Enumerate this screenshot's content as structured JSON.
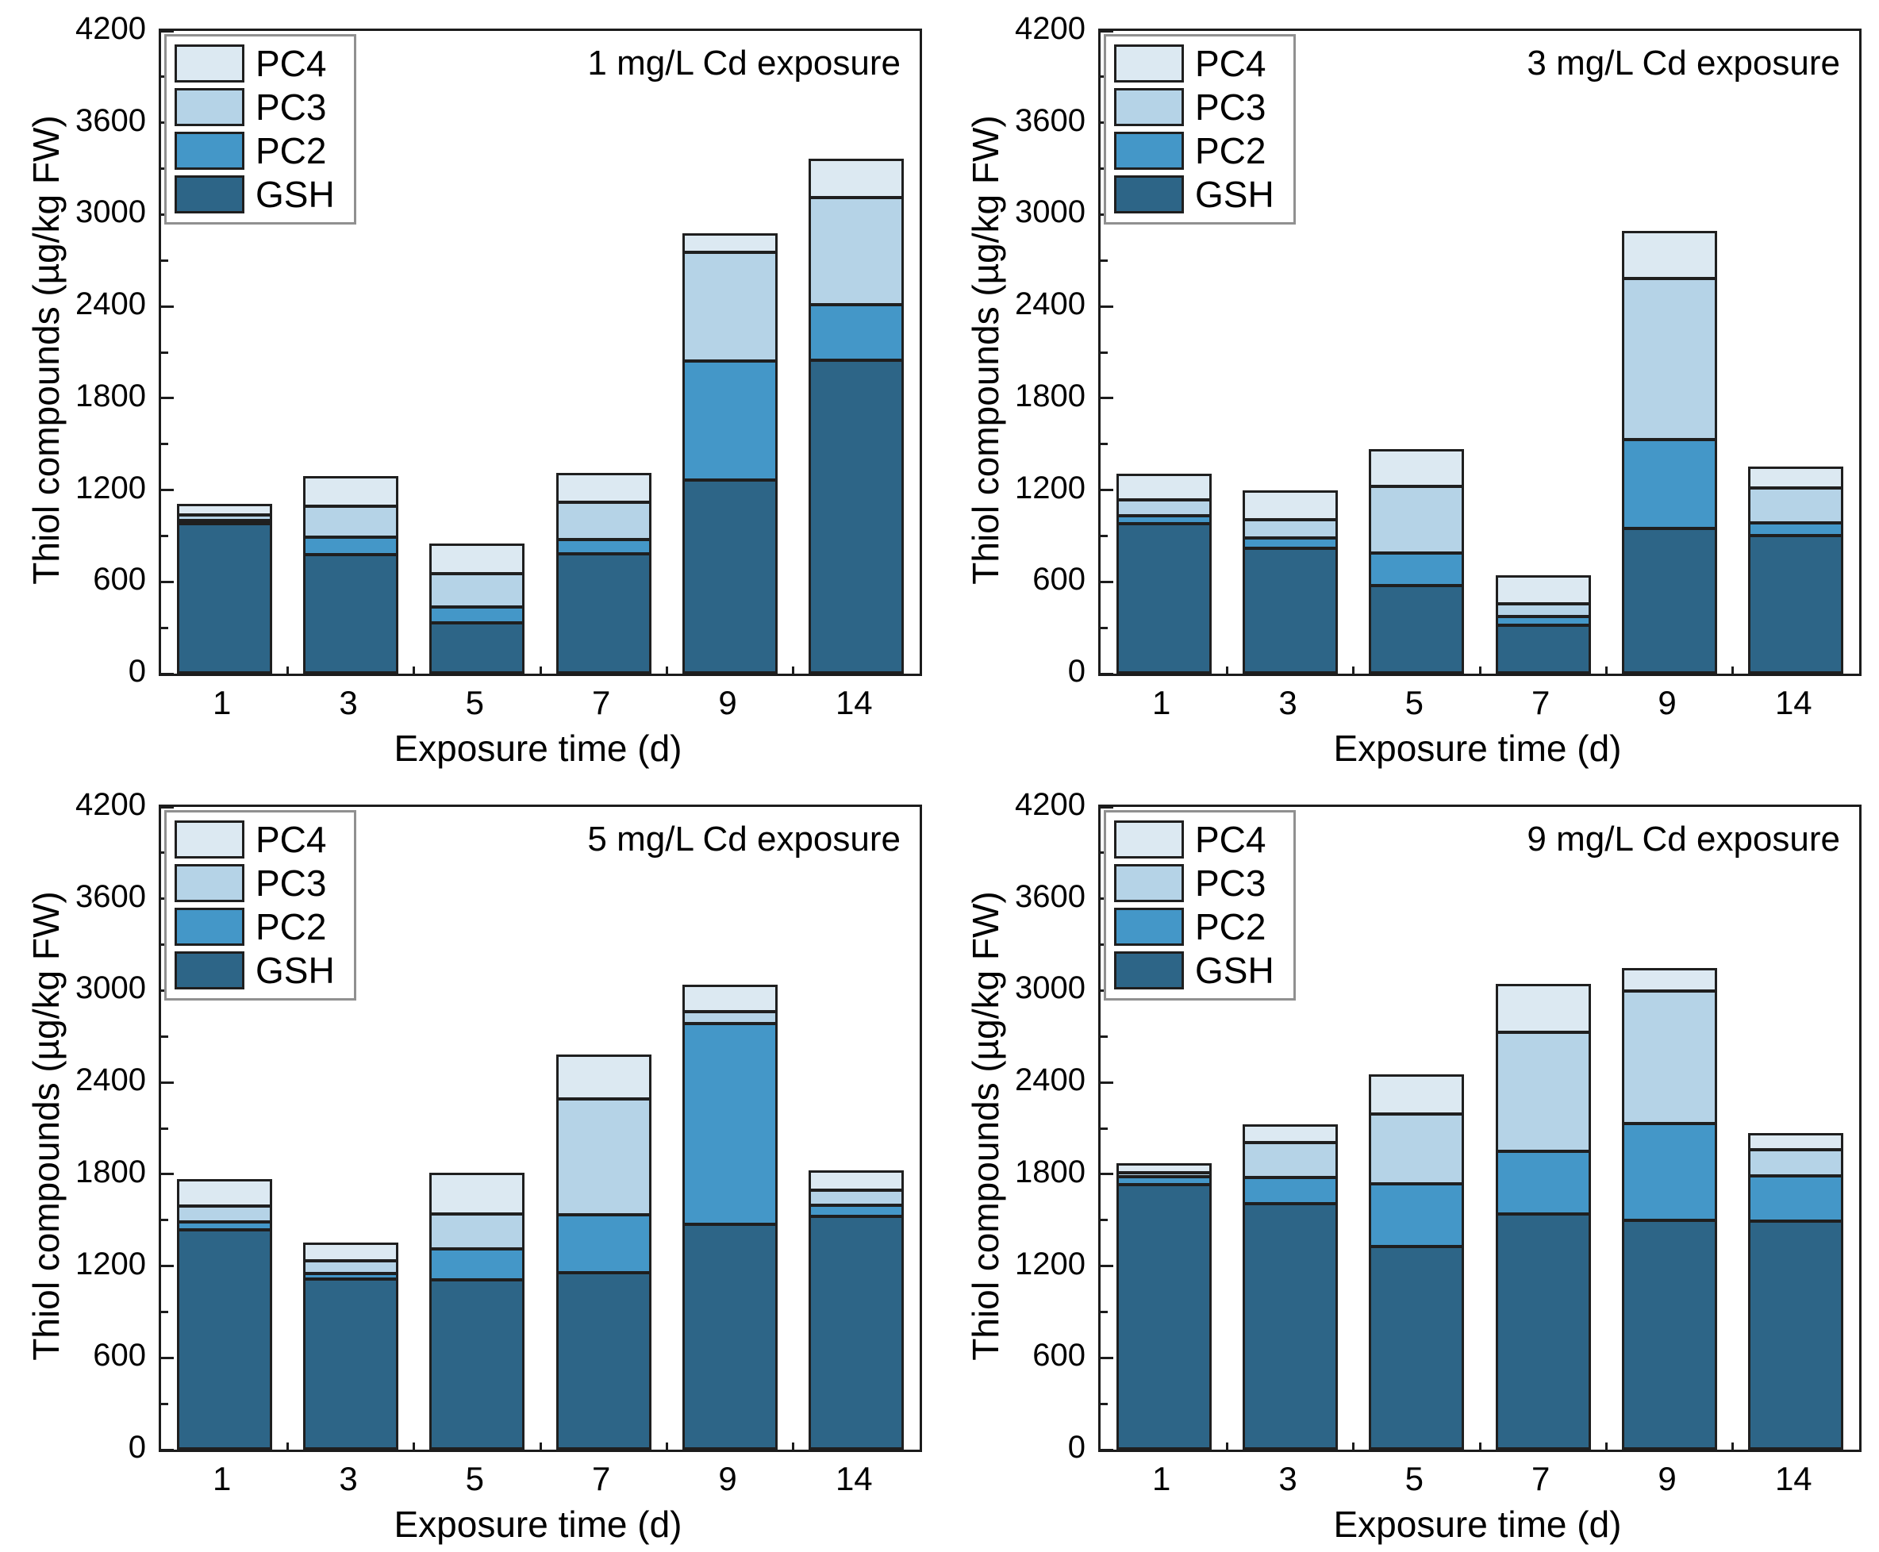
{
  "colors": {
    "GSH": "#2d6587",
    "PC2": "#4497c8",
    "PC3": "#b5d3e7",
    "PC4": "#dce9f2",
    "bar_border": "#1f1f1f",
    "frame": "#1c1c1c",
    "legend_border": "#909090",
    "text": "#000000"
  },
  "chart_data": [
    {
      "type": "bar",
      "stacked": true,
      "title": "1 mg/L Cd exposure",
      "xlabel": "Exposure time (d)",
      "ylabel": "Thiol compounds (µg/kg FW)",
      "legend": [
        "PC4",
        "PC3",
        "PC2",
        "GSH"
      ],
      "legend_position": "top-left",
      "categories": [
        "1",
        "3",
        "5",
        "7",
        "9",
        "14"
      ],
      "ylim": [
        0,
        4200
      ],
      "yticks": [
        0,
        600,
        1200,
        1800,
        2400,
        3000,
        3600,
        4200
      ],
      "yminor_step": 300,
      "grid": false,
      "series": [
        {
          "name": "GSH",
          "values": [
            1010,
            805,
            355,
            805,
            1290,
            2070
          ]
        },
        {
          "name": "PC2",
          "values": [
            20,
            115,
            105,
            95,
            780,
            365
          ]
        },
        {
          "name": "PC3",
          "values": [
            35,
            200,
            220,
            245,
            710,
            700
          ]
        },
        {
          "name": "PC4",
          "values": [
            45,
            170,
            170,
            165,
            100,
            230
          ]
        }
      ]
    },
    {
      "type": "bar",
      "stacked": true,
      "title": "3 mg/L Cd exposure",
      "xlabel": "Exposure time (d)",
      "ylabel": "Thiol compounds (µg/kg FW)",
      "legend": [
        "PC4",
        "PC3",
        "PC2",
        "GSH"
      ],
      "legend_position": "top-left",
      "categories": [
        "1",
        "3",
        "5",
        "7",
        "9",
        "14"
      ],
      "ylim": [
        0,
        4200
      ],
      "yticks": [
        0,
        600,
        1200,
        1800,
        2400,
        3000,
        3600,
        4200
      ],
      "yminor_step": 300,
      "grid": false,
      "series": [
        {
          "name": "GSH",
          "values": [
            1005,
            850,
            595,
            345,
            975,
            925
          ]
        },
        {
          "name": "PC2",
          "values": [
            50,
            65,
            215,
            55,
            580,
            85
          ]
        },
        {
          "name": "PC3",
          "values": [
            105,
            120,
            435,
            85,
            1055,
            230
          ]
        },
        {
          "name": "PC4",
          "values": [
            145,
            165,
            220,
            160,
            285,
            115
          ]
        }
      ]
    },
    {
      "type": "bar",
      "stacked": true,
      "title": "5 mg/L Cd exposure",
      "xlabel": "Exposure time (d)",
      "ylabel": "Thiol compounds (µg/kg FW)",
      "legend": [
        "PC4",
        "PC3",
        "PC2",
        "GSH"
      ],
      "legend_position": "top-left",
      "categories": [
        "1",
        "3",
        "5",
        "7",
        "9",
        "14"
      ],
      "ylim": [
        0,
        4200
      ],
      "yticks": [
        0,
        600,
        1200,
        1800,
        2400,
        3000,
        3600,
        4200
      ],
      "yminor_step": 300,
      "grid": false,
      "series": [
        {
          "name": "GSH",
          "values": [
            1465,
            1140,
            1135,
            1180,
            1500,
            1550
          ]
        },
        {
          "name": "PC2",
          "values": [
            50,
            35,
            200,
            380,
            1310,
            70
          ]
        },
        {
          "name": "PC3",
          "values": [
            105,
            85,
            230,
            755,
            80,
            100
          ]
        },
        {
          "name": "PC4",
          "values": [
            150,
            95,
            245,
            265,
            150,
            105
          ]
        }
      ]
    },
    {
      "type": "bar",
      "stacked": true,
      "title": "9 mg/L Cd exposure",
      "xlabel": "Exposure time (d)",
      "ylabel": "Thiol compounds (µg/kg FW)",
      "legend": [
        "PC4",
        "PC3",
        "PC2",
        "GSH"
      ],
      "legend_position": "top-left",
      "categories": [
        "1",
        "3",
        "5",
        "7",
        "9",
        "14"
      ],
      "ylim": [
        0,
        4200
      ],
      "yticks": [
        0,
        600,
        1200,
        1800,
        2400,
        3000,
        3600,
        4200
      ],
      "yminor_step": 300,
      "grid": false,
      "series": [
        {
          "name": "GSH",
          "values": [
            1760,
            1630,
            1350,
            1565,
            1520,
            1520
          ]
        },
        {
          "name": "PC2",
          "values": [
            50,
            170,
            410,
            410,
            635,
            295
          ]
        },
        {
          "name": "PC3",
          "values": [
            25,
            230,
            455,
            780,
            865,
            170
          ]
        },
        {
          "name": "PC4",
          "values": [
            35,
            95,
            235,
            290,
            125,
            85
          ]
        }
      ]
    }
  ]
}
